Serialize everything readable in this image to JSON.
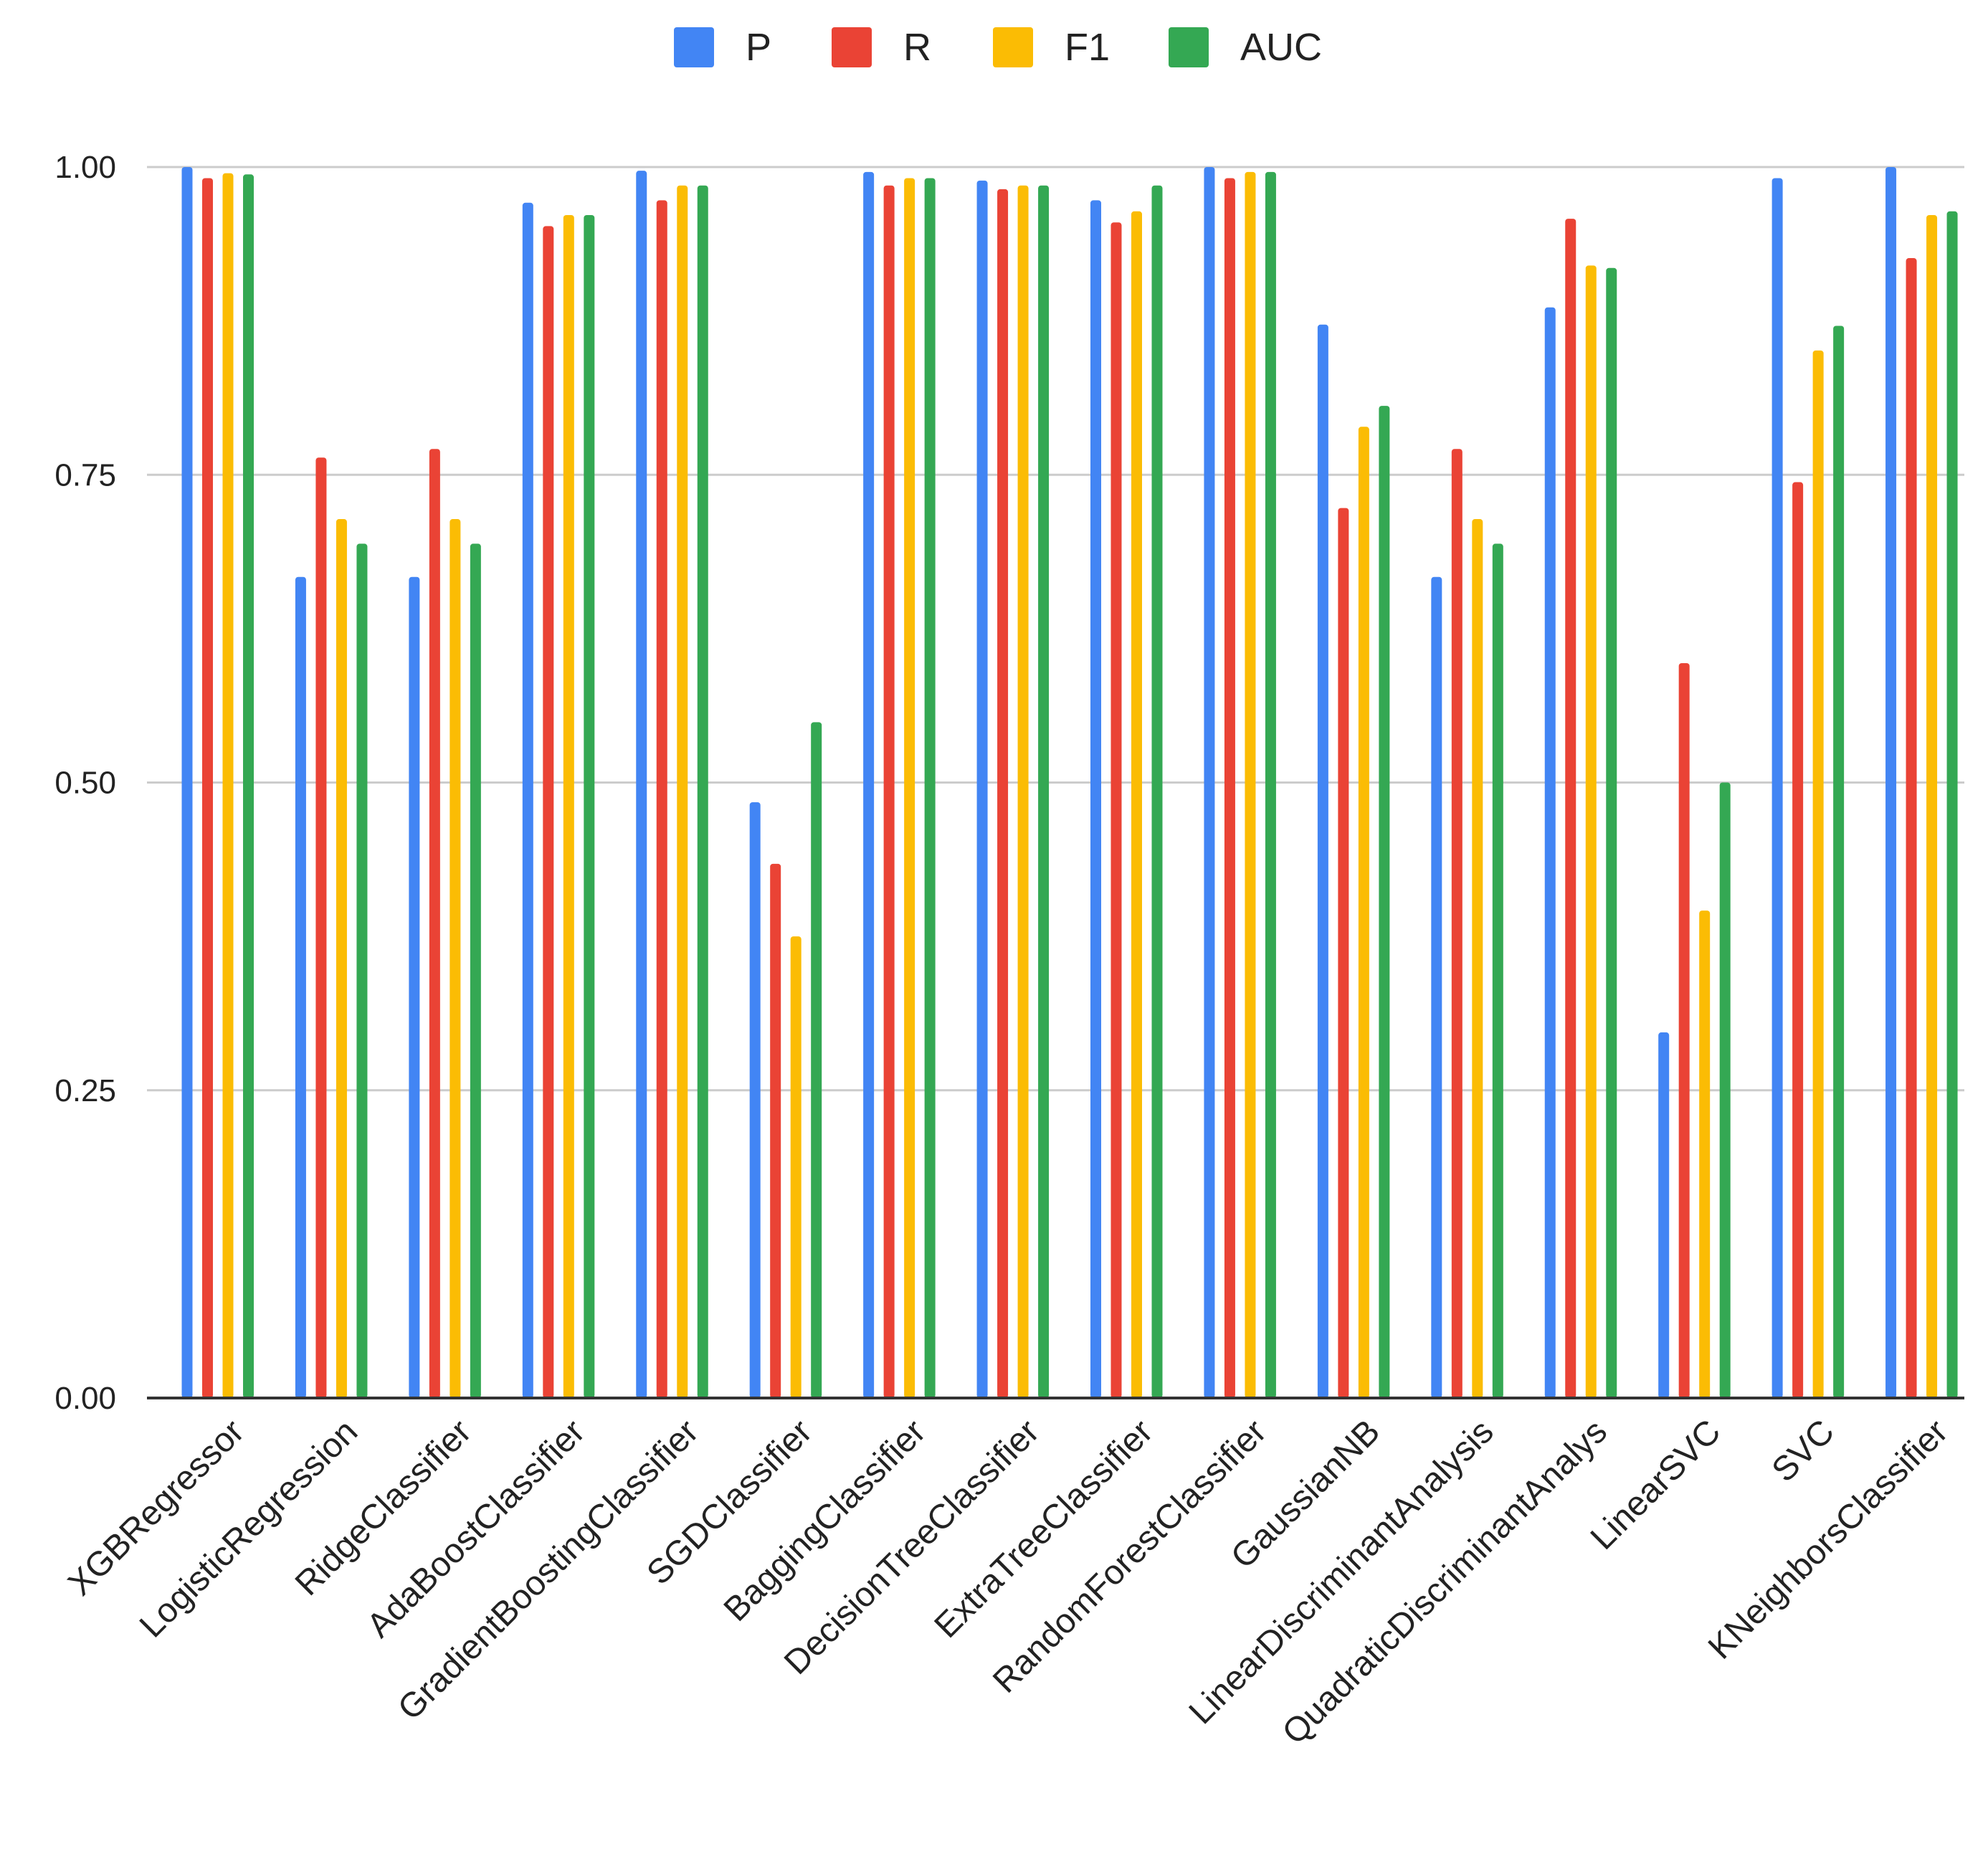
{
  "chart_data": {
    "type": "bar",
    "title": "",
    "xlabel": "",
    "ylabel": "",
    "ylim": [
      0,
      1
    ],
    "yticks": [
      0,
      0.25,
      0.5,
      0.75,
      1.0
    ],
    "ytick_labels": [
      "0.00",
      "0.25",
      "0.50",
      "0.75",
      "1.00"
    ],
    "grid": true,
    "legend_position": "top-center",
    "categories": [
      "XGBRegressor",
      "LogisticRegression",
      "RidgeClassifier",
      "AdaBoostClassifier",
      "GradientBoostingClassifier",
      "SGDClassifier",
      "BaggingClassifier",
      "DecisionTreeClassifier",
      "ExtraTreeClassifier",
      "RandomForestClassifier",
      "GaussianNB",
      "LinearDiscriminantAnalysis",
      "QuadraticDiscriminantAnalys",
      "LinearSVC",
      "SVC",
      "KNeighborsClassifier"
    ],
    "series": [
      {
        "name": "P",
        "color": "#4285F4",
        "values": [
          1.0,
          0.667,
          0.667,
          0.971,
          0.997,
          0.484,
          0.996,
          0.989,
          0.973,
          1.0,
          0.872,
          0.667,
          0.886,
          0.297,
          0.991,
          1.0
        ]
      },
      {
        "name": "R",
        "color": "#EA4335",
        "values": [
          0.991,
          0.764,
          0.771,
          0.952,
          0.973,
          0.434,
          0.985,
          0.982,
          0.955,
          0.991,
          0.723,
          0.771,
          0.958,
          0.597,
          0.744,
          0.926
        ]
      },
      {
        "name": "F1",
        "color": "#FBBC04",
        "values": [
          0.995,
          0.714,
          0.714,
          0.961,
          0.985,
          0.375,
          0.991,
          0.985,
          0.964,
          0.996,
          0.789,
          0.714,
          0.92,
          0.396,
          0.851,
          0.961
        ]
      },
      {
        "name": "AUC",
        "color": "#34A853",
        "values": [
          0.994,
          0.694,
          0.694,
          0.961,
          0.985,
          0.549,
          0.991,
          0.985,
          0.985,
          0.996,
          0.806,
          0.694,
          0.918,
          0.5,
          0.871,
          0.964
        ]
      }
    ]
  }
}
